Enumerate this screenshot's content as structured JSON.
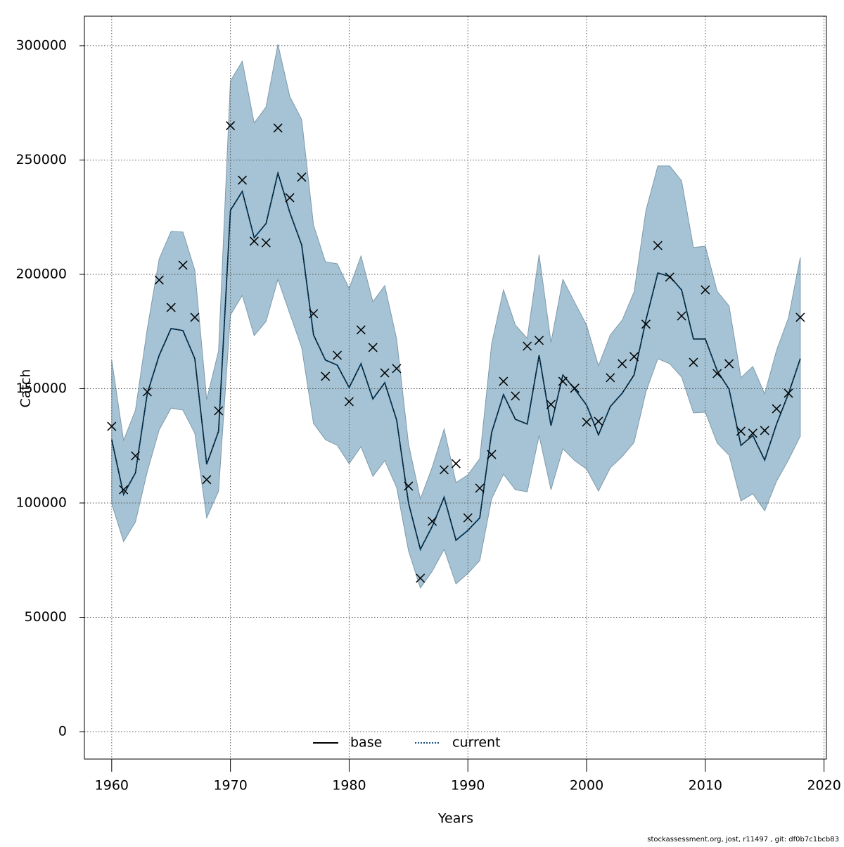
{
  "chart_data": {
    "type": "line",
    "xlabel": "Years",
    "ylabel": "Catch",
    "footer": "stockassessment.org, jost, r11497 , git: df0b7c1bcb83",
    "grid": true,
    "legend": "bottom",
    "x": [
      1960,
      1961,
      1962,
      1963,
      1964,
      1965,
      1966,
      1967,
      1968,
      1969,
      1970,
      1971,
      1972,
      1973,
      1974,
      1975,
      1976,
      1977,
      1978,
      1979,
      1980,
      1981,
      1982,
      1983,
      1984,
      1985,
      1986,
      1987,
      1988,
      1989,
      1990,
      1991,
      1992,
      1993,
      1994,
      1995,
      1996,
      1997,
      1998,
      1999,
      2000,
      2001,
      2002,
      2003,
      2004,
      2005,
      2006,
      2007,
      2008,
      2009,
      2010,
      2011,
      2012,
      2013,
      2014,
      2015,
      2016,
      2017,
      2018
    ],
    "series": [
      {
        "name": "base",
        "color": "#000000",
        "dash": false,
        "values": [
          127700,
          103700,
          113200,
          148000,
          164600,
          176300,
          175400,
          163100,
          116900,
          131400,
          228000,
          236300,
          216000,
          222200,
          244300,
          227100,
          212900,
          173500,
          162500,
          160300,
          150500,
          160900,
          145500,
          152600,
          136300,
          100000,
          79700,
          89800,
          102500,
          83700,
          88000,
          93500,
          130800,
          147400,
          136600,
          134500,
          164600,
          133800,
          156000,
          149800,
          142800,
          129800,
          142200,
          148000,
          156000,
          180000,
          200600,
          199100,
          193200,
          171700,
          171700,
          157800,
          149800,
          125200,
          129500,
          118800,
          134500,
          147700,
          163100
        ]
      },
      {
        "name": "current",
        "color": "#0b4f7c",
        "dash": true,
        "values": [
          127700,
          103700,
          113200,
          148000,
          164600,
          176300,
          175400,
          163100,
          116900,
          131400,
          228000,
          236300,
          216000,
          222200,
          244300,
          227100,
          212900,
          173500,
          162500,
          160300,
          150500,
          160900,
          145500,
          152600,
          136300,
          100000,
          79700,
          89800,
          102500,
          83700,
          88000,
          93500,
          130800,
          147400,
          136600,
          134500,
          164600,
          133800,
          156000,
          149800,
          142800,
          129800,
          142200,
          148000,
          156000,
          180000,
          200600,
          199100,
          193200,
          171700,
          171700,
          157800,
          149800,
          125200,
          129500,
          118800,
          134500,
          147700,
          163100
        ]
      }
    ],
    "interval": {
      "color": "#a5c3d4",
      "upper": [
        162500,
        127400,
        140600,
        176300,
        206800,
        218800,
        218500,
        201800,
        145200,
        166500,
        284600,
        293200,
        266200,
        273200,
        300600,
        277800,
        267700,
        221500,
        205500,
        204600,
        193800,
        208000,
        188000,
        195100,
        171700,
        125800,
        101800,
        115700,
        132300,
        108900,
        112300,
        119400,
        169500,
        193200,
        177800,
        172000,
        208600,
        170200,
        197800,
        187700,
        177800,
        160000,
        173500,
        180000,
        192300,
        228000,
        247400,
        247400,
        240900,
        211700,
        212300,
        192600,
        186200,
        154800,
        159700,
        147700,
        166800,
        180900,
        207400
      ],
      "lower": [
        99700,
        83100,
        91700,
        113800,
        132000,
        141500,
        140600,
        130500,
        93500,
        105200,
        182200,
        190800,
        173200,
        179400,
        197800,
        182800,
        168000,
        134800,
        127700,
        125200,
        117200,
        124600,
        111700,
        118500,
        106800,
        79100,
        62800,
        70200,
        79700,
        64600,
        69200,
        74800,
        101800,
        112600,
        105800,
        104900,
        129500,
        105800,
        123700,
        118500,
        114800,
        105200,
        115400,
        120300,
        126500,
        148600,
        163100,
        160900,
        155100,
        139400,
        139700,
        126200,
        120900,
        100900,
        104000,
        96600,
        109500,
        118800,
        129200
      ]
    },
    "observed": {
      "color": "#000000",
      "values": [
        133500,
        105800,
        120600,
        148600,
        197500,
        185500,
        204000,
        181200,
        110200,
        140300,
        265000,
        241200,
        214500,
        213800,
        264000,
        233500,
        242500,
        182800,
        155400,
        164600,
        144300,
        175700,
        168000,
        156900,
        158800,
        107400,
        67100,
        92000,
        114500,
        117200,
        93500,
        106500,
        121200,
        153200,
        146800,
        168600,
        171100,
        143100,
        153200,
        150200,
        135400,
        135700,
        154800,
        160900,
        164000,
        178200,
        212600,
        198800,
        181800,
        161500,
        193200,
        156600,
        160900,
        131400,
        130500,
        131700,
        141200,
        148000,
        181200
      ]
    },
    "xlim": [
      1957.7,
      2020.2
    ],
    "ylim": [
      -12000,
      312900
    ],
    "xticks": [
      1960,
      1970,
      1980,
      1990,
      2000,
      2010,
      2020
    ],
    "yticks": [
      0,
      50000,
      100000,
      150000,
      200000,
      250000,
      300000
    ]
  }
}
